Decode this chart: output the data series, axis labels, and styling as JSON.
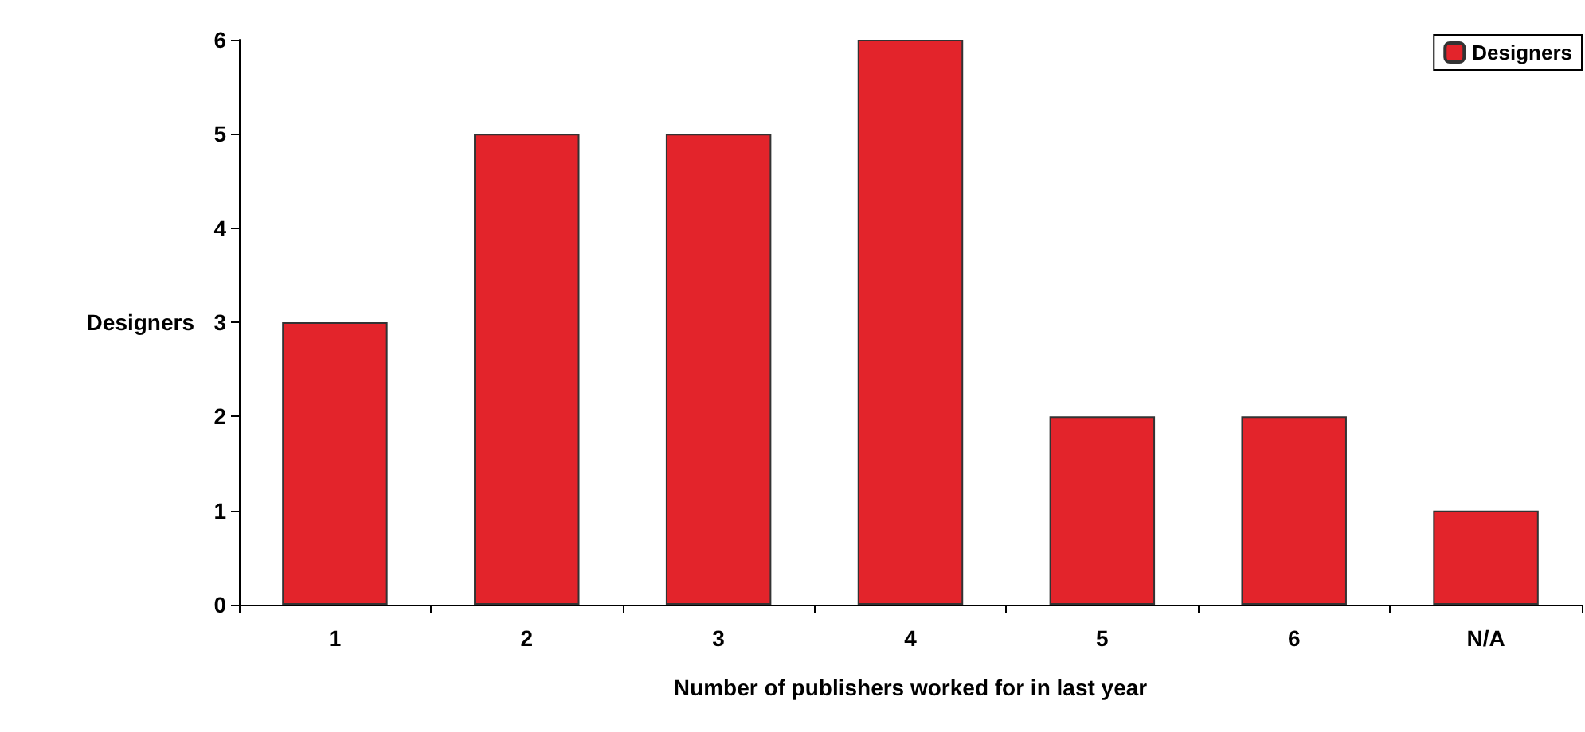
{
  "chart_data": {
    "type": "bar",
    "xlabel": "Number of publishers worked for in last year",
    "ylabel": "Designers",
    "categories": [
      "1",
      "2",
      "3",
      "4",
      "5",
      "6",
      "N/A"
    ],
    "series": [
      {
        "name": "Designers",
        "color": "#e3242b",
        "values": [
          3,
          5,
          5,
          6,
          2,
          2,
          1
        ]
      }
    ],
    "ylim": [
      0,
      6
    ],
    "yticks": [
      0,
      1,
      2,
      3,
      4,
      5,
      6
    ],
    "grid": false,
    "legend": "top right"
  }
}
